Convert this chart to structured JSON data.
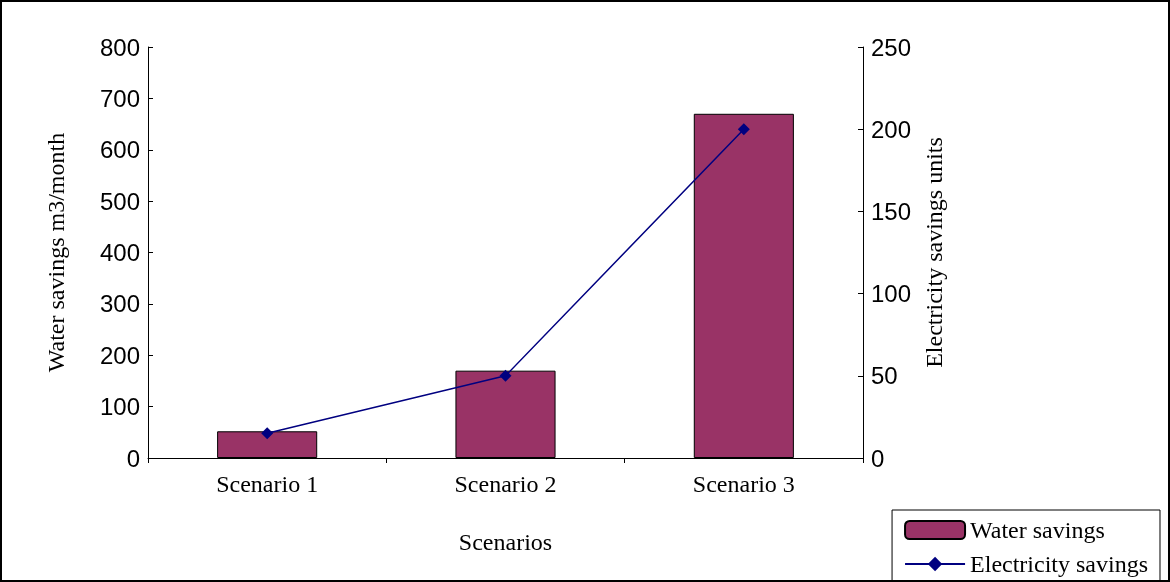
{
  "chart_data": {
    "type": "bar",
    "categories": [
      "Scenario 1",
      "Scenario 2",
      "Scenario 3"
    ],
    "xlabel": "Scenarios",
    "ylabel": "Water savings m3/month",
    "y2label": "Electricity savings units",
    "series": [
      {
        "name": "Water savings",
        "color": "#993366",
        "values": [
          52,
          170,
          670
        ]
      },
      {
        "name": "Electricity savings",
        "type": "line",
        "axis": "y2",
        "color": "#000080",
        "marker": "diamond",
        "values": [
          15,
          50,
          200
        ]
      }
    ],
    "ylim": [
      0,
      800
    ],
    "yticks": [
      0,
      100,
      200,
      300,
      400,
      500,
      600,
      700,
      800
    ],
    "y2lim": [
      0,
      250
    ],
    "y2ticks": [
      0,
      50,
      100,
      150,
      200,
      250
    ],
    "grid": false,
    "legend": "bottom right"
  }
}
